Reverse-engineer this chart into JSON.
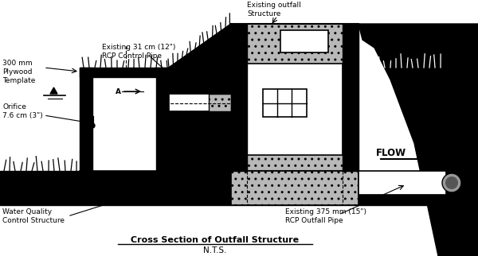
{
  "title": "Cross Section of Outfall Structure",
  "subtitle": "N.T.S.",
  "bg_color": "#ffffff",
  "labels": {
    "plywood": "300 mm\nPlywood\nTemplate",
    "orifice": "Orifice\n7.6 cm (3\")",
    "control_pipe": "Existing 31 cm (12\")\nRCP Control Pipe",
    "outfall_structure": "Existing outfall\nStructure",
    "outfall_pipe": "Existing 375 mm (15\")\nRCP Outfall Pipe",
    "water_quality": "Water Quality\nControl Structure",
    "flow": "FLOW"
  },
  "gray_stipple": "#b8b8b8",
  "black": "#000000",
  "white": "#ffffff"
}
